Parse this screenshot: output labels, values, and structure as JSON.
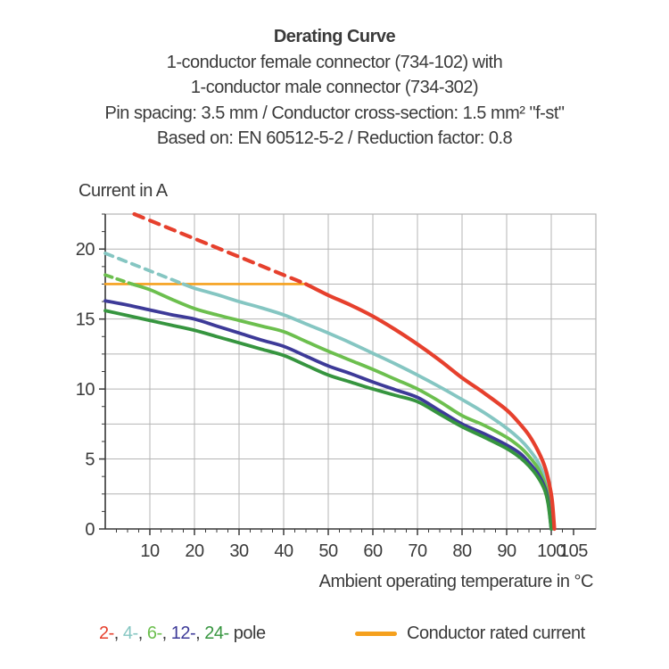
{
  "header": {
    "title": "Derating Curve",
    "lines": [
      "1-conductor female connector (734-102) with",
      "1-conductor male connector (734-302)",
      "Pin spacing: 3.5 mm / Conductor cross-section: 1.5 mm² \"f-st\"",
      "Based on: EN 60512-5-2 / Reduction factor: 0.8"
    ]
  },
  "chart_data": {
    "type": "line",
    "title": "Derating Curve",
    "ylabel": "Current in A",
    "xlabel": "Ambient operating temperature in °C",
    "xlim": [
      0,
      110
    ],
    "ylim": [
      0,
      22.5
    ],
    "x_major_ticks": [
      10,
      20,
      30,
      40,
      50,
      60,
      70,
      80,
      90,
      100,
      105
    ],
    "x_minor_step": 2.5,
    "y_major_ticks": [
      0,
      5,
      10,
      15,
      20
    ],
    "y_minor_step": 1.25,
    "grid": true,
    "x_grid_step": 10,
    "y_grid_step": 2.5,
    "grid_color": "#b4b4b4",
    "axis_color": "#3a3a3a",
    "rated_current_line": {
      "label": "Conductor rated current",
      "color": "#f5a01d",
      "y": 17.5,
      "x_range": [
        0,
        45
      ],
      "stroke_width": 2.6
    },
    "series": [
      {
        "name": "2-pole",
        "color": "#e6402d",
        "stroke_width": 4.2,
        "dash_pattern": "11 8",
        "dashed_points": [
          [
            6.5,
            22.5
          ],
          [
            45,
            17.5
          ]
        ],
        "solid_points": [
          [
            45,
            17.5
          ],
          [
            50,
            16.7
          ],
          [
            55,
            16.0
          ],
          [
            60,
            15.2
          ],
          [
            65,
            14.25
          ],
          [
            70,
            13.2
          ],
          [
            75,
            12.05
          ],
          [
            80,
            10.8
          ],
          [
            85,
            9.7
          ],
          [
            90,
            8.5
          ],
          [
            93,
            7.5
          ],
          [
            95,
            6.7
          ],
          [
            97,
            5.6
          ],
          [
            98.5,
            4.5
          ],
          [
            99.5,
            3.3
          ],
          [
            100.2,
            2.0
          ],
          [
            100.7,
            0
          ]
        ]
      },
      {
        "name": "4-pole",
        "color": "#85c6c2",
        "stroke_width": 3.8,
        "dash_pattern": "9 7",
        "dashed_points": [
          [
            0,
            19.7
          ],
          [
            17.5,
            17.5
          ]
        ],
        "solid_points": [
          [
            17.5,
            17.5
          ],
          [
            20,
            17.2
          ],
          [
            25,
            16.75
          ],
          [
            30,
            16.25
          ],
          [
            35,
            15.8
          ],
          [
            40,
            15.3
          ],
          [
            45,
            14.65
          ],
          [
            50,
            14.0
          ],
          [
            55,
            13.3
          ],
          [
            60,
            12.55
          ],
          [
            65,
            11.8
          ],
          [
            70,
            11.0
          ],
          [
            75,
            10.15
          ],
          [
            80,
            9.25
          ],
          [
            85,
            8.3
          ],
          [
            90,
            7.2
          ],
          [
            93,
            6.4
          ],
          [
            95,
            5.7
          ],
          [
            97,
            4.8
          ],
          [
            98.5,
            3.7
          ],
          [
            99.3,
            2.6
          ],
          [
            100.2,
            0
          ]
        ]
      },
      {
        "name": "6-pole",
        "color": "#6cbf4e",
        "stroke_width": 3.8,
        "dash_pattern": "8 6",
        "dashed_points": [
          [
            0,
            18.15
          ],
          [
            6,
            17.5
          ]
        ],
        "solid_points": [
          [
            6,
            17.5
          ],
          [
            10,
            17.1
          ],
          [
            15,
            16.4
          ],
          [
            20,
            15.75
          ],
          [
            25,
            15.3
          ],
          [
            30,
            14.9
          ],
          [
            35,
            14.5
          ],
          [
            40,
            14.1
          ],
          [
            45,
            13.4
          ],
          [
            50,
            12.7
          ],
          [
            55,
            12.05
          ],
          [
            60,
            11.4
          ],
          [
            65,
            10.7
          ],
          [
            70,
            10.0
          ],
          [
            75,
            9.1
          ],
          [
            80,
            8.1
          ],
          [
            85,
            7.4
          ],
          [
            90,
            6.55
          ],
          [
            93,
            5.85
          ],
          [
            95,
            5.2
          ],
          [
            97,
            4.35
          ],
          [
            98.5,
            3.3
          ],
          [
            99.3,
            2.3
          ],
          [
            100.1,
            0
          ]
        ]
      },
      {
        "name": "12-pole",
        "color": "#3d3a98",
        "stroke_width": 3.8,
        "dashed_points": null,
        "solid_points": [
          [
            0,
            16.3
          ],
          [
            5,
            16.0
          ],
          [
            10,
            15.65
          ],
          [
            15,
            15.3
          ],
          [
            20,
            15.0
          ],
          [
            25,
            14.5
          ],
          [
            30,
            14.0
          ],
          [
            35,
            13.5
          ],
          [
            40,
            13.05
          ],
          [
            45,
            12.35
          ],
          [
            50,
            11.65
          ],
          [
            55,
            11.1
          ],
          [
            60,
            10.5
          ],
          [
            65,
            9.95
          ],
          [
            70,
            9.4
          ],
          [
            75,
            8.45
          ],
          [
            80,
            7.5
          ],
          [
            85,
            6.8
          ],
          [
            90,
            6.0
          ],
          [
            93,
            5.4
          ],
          [
            95,
            4.75
          ],
          [
            97,
            3.95
          ],
          [
            98.5,
            3.0
          ],
          [
            99.3,
            2.0
          ],
          [
            100,
            0
          ]
        ]
      },
      {
        "name": "24-pole",
        "color": "#36953f",
        "stroke_width": 3.8,
        "dashed_points": null,
        "solid_points": [
          [
            0,
            15.6
          ],
          [
            5,
            15.25
          ],
          [
            10,
            14.9
          ],
          [
            15,
            14.55
          ],
          [
            20,
            14.2
          ],
          [
            25,
            13.75
          ],
          [
            30,
            13.3
          ],
          [
            35,
            12.85
          ],
          [
            40,
            12.4
          ],
          [
            45,
            11.7
          ],
          [
            50,
            11.0
          ],
          [
            55,
            10.5
          ],
          [
            60,
            10.0
          ],
          [
            65,
            9.55
          ],
          [
            70,
            9.1
          ],
          [
            75,
            8.2
          ],
          [
            80,
            7.3
          ],
          [
            85,
            6.55
          ],
          [
            90,
            5.75
          ],
          [
            93,
            5.1
          ],
          [
            95,
            4.5
          ],
          [
            97,
            3.7
          ],
          [
            98.5,
            2.8
          ],
          [
            99.3,
            1.8
          ],
          [
            100,
            0
          ]
        ]
      }
    ]
  },
  "legend": {
    "poles": [
      {
        "label": "2-",
        "color": "#e6402d"
      },
      {
        "label": "4-",
        "color": "#85c6c2"
      },
      {
        "label": "6-",
        "color": "#6cbf4e"
      },
      {
        "label": "12-",
        "color": "#3d3a98"
      },
      {
        "label": "24-",
        "color": "#36953f"
      }
    ],
    "separator": ", ",
    "pole_word": " pole",
    "text_color": "#3a3a3a",
    "rated_label": "Conductor rated current",
    "rated_color": "#f5a01d"
  }
}
